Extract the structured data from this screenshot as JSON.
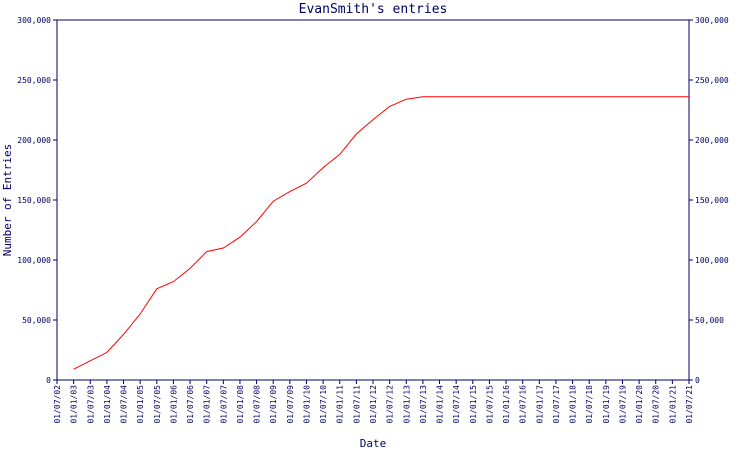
{
  "chart_data": {
    "type": "line",
    "title": "EvanSmith's entries",
    "x_label": "Date",
    "y_label": "Number of Entries",
    "categories": [
      "01/07/02",
      "01/01/03",
      "01/07/03",
      "01/01/04",
      "01/07/04",
      "01/01/05",
      "01/07/05",
      "01/01/06",
      "01/07/06",
      "01/01/07",
      "01/07/07",
      "01/01/08",
      "01/07/08",
      "01/01/09",
      "01/07/09",
      "01/01/10",
      "01/07/10",
      "01/01/11",
      "01/07/11",
      "01/01/12",
      "01/07/12",
      "01/01/13",
      "01/07/13",
      "01/01/14",
      "01/07/14",
      "01/01/15",
      "01/07/15",
      "01/01/16",
      "01/07/16",
      "01/01/17",
      "01/07/17",
      "01/01/18",
      "01/07/18",
      "01/01/19",
      "01/07/19",
      "01/01/20",
      "01/07/20",
      "01/01/21",
      "01/07/21"
    ],
    "series": [
      {
        "name": "EvanSmith",
        "color": "#ff0000",
        "values": [
          null,
          9000,
          16000,
          23000,
          38000,
          55000,
          76000,
          82000,
          93000,
          107000,
          110000,
          119000,
          132000,
          149000,
          157000,
          164000,
          177000,
          188000,
          205000,
          217000,
          228000,
          234000,
          236000,
          236000,
          236000,
          236000,
          236000,
          236000,
          236000,
          236000,
          236000,
          236000,
          236000,
          236000,
          236000,
          236000,
          236000,
          236000,
          236000
        ]
      }
    ],
    "ylim": [
      0,
      300000
    ],
    "yticks": [
      {
        "value": 0,
        "label": "0"
      },
      {
        "value": 50000,
        "label": "50,000"
      },
      {
        "value": 100000,
        "label": "100,000"
      },
      {
        "value": 150000,
        "label": "150,000"
      },
      {
        "value": 200000,
        "label": "200,000"
      },
      {
        "value": 250000,
        "label": "250,000"
      },
      {
        "value": 300000,
        "label": "300,000"
      }
    ],
    "axis_color": "#000066"
  }
}
